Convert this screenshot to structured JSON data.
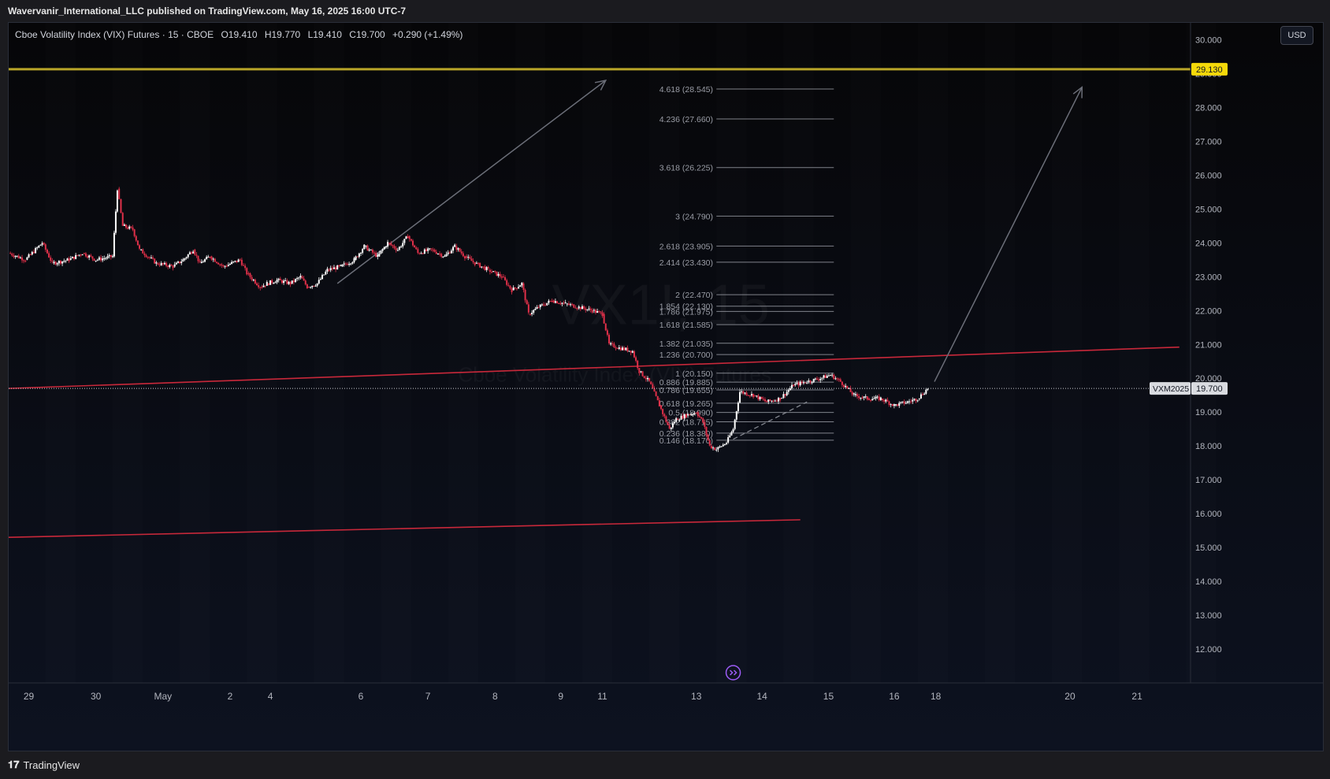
{
  "header": {
    "published": "Wavervanir_International_LLC published on TradingView.com, May 16, 2025 16:00 UTC-7"
  },
  "legend": {
    "symbol": "Cboe Volatility Index (VIX) Futures · 15 · CBOE",
    "open": "O19.410",
    "high": "H19.770",
    "low": "L19.410",
    "close": "C19.700",
    "change": "+0.290 (+1.49%)"
  },
  "currency_button": "USD",
  "footer": {
    "brand": "TradingView"
  },
  "colors": {
    "bull": "#ffffff",
    "bear": "#e03049",
    "trendline": "#c8283a",
    "fib": "#b2b5be",
    "arrow": "#6b6e78",
    "level": "#b8a528",
    "price_label_bg": "#f5d90a",
    "purple": "#9c5cf6"
  },
  "chart_data": {
    "type": "candlestick",
    "symbol": "VX1!",
    "interval": "15",
    "y_axis": {
      "range": [
        11.0,
        30.5
      ],
      "ticks": [
        "12.000",
        "13.000",
        "14.000",
        "15.000",
        "16.000",
        "17.000",
        "18.000",
        "19.000",
        "20.000",
        "21.000",
        "22.000",
        "23.000",
        "24.000",
        "25.000",
        "26.000",
        "27.000",
        "28.000",
        "29.000",
        "30.000"
      ]
    },
    "x_axis": {
      "ticks": [
        {
          "label": "29",
          "t": 0.3
        },
        {
          "label": "30",
          "t": 1.3
        },
        {
          "label": "May",
          "t": 2.3
        },
        {
          "label": "2",
          "t": 3.3
        },
        {
          "label": "4",
          "t": 3.9
        },
        {
          "label": "6",
          "t": 5.25
        },
        {
          "label": "7",
          "t": 6.25
        },
        {
          "label": "8",
          "t": 7.25
        },
        {
          "label": "9",
          "t": 8.23
        },
        {
          "label": "11",
          "t": 8.85
        },
        {
          "label": "13",
          "t": 10.25
        },
        {
          "label": "14",
          "t": 11.23
        },
        {
          "label": "15",
          "t": 12.22
        },
        {
          "label": "16",
          "t": 13.2
        },
        {
          "label": "18",
          "t": 13.82
        },
        {
          "label": "20",
          "t": 15.82
        },
        {
          "label": "21",
          "t": 16.82
        }
      ],
      "range": [
        0,
        17.5
      ]
    },
    "price_path": [
      [
        0.0,
        23.7
      ],
      [
        0.25,
        23.5
      ],
      [
        0.5,
        24.0
      ],
      [
        0.65,
        23.4
      ],
      [
        0.9,
        23.5
      ],
      [
        1.1,
        23.7
      ],
      [
        1.3,
        23.5
      ],
      [
        1.55,
        23.6
      ],
      [
        1.62,
        25.6
      ],
      [
        1.7,
        24.5
      ],
      [
        1.85,
        24.4
      ],
      [
        1.95,
        23.8
      ],
      [
        2.2,
        23.4
      ],
      [
        2.45,
        23.3
      ],
      [
        2.6,
        23.5
      ],
      [
        2.75,
        23.8
      ],
      [
        2.85,
        23.4
      ],
      [
        3.0,
        23.6
      ],
      [
        3.2,
        23.3
      ],
      [
        3.45,
        23.5
      ],
      [
        3.55,
        23.1
      ],
      [
        3.75,
        22.7
      ],
      [
        3.85,
        22.8
      ],
      [
        4.0,
        22.9
      ],
      [
        4.2,
        22.8
      ],
      [
        4.35,
        23.0
      ],
      [
        4.45,
        22.7
      ],
      [
        4.6,
        22.8
      ],
      [
        4.75,
        23.2
      ],
      [
        4.95,
        23.3
      ],
      [
        5.15,
        23.5
      ],
      [
        5.3,
        23.9
      ],
      [
        5.5,
        23.6
      ],
      [
        5.65,
        24.0
      ],
      [
        5.8,
        23.8
      ],
      [
        5.95,
        24.2
      ],
      [
        6.1,
        23.7
      ],
      [
        6.3,
        23.8
      ],
      [
        6.5,
        23.6
      ],
      [
        6.65,
        23.9
      ],
      [
        6.8,
        23.6
      ],
      [
        6.95,
        23.4
      ],
      [
        7.15,
        23.2
      ],
      [
        7.35,
        23.0
      ],
      [
        7.5,
        22.6
      ],
      [
        7.65,
        22.8
      ],
      [
        7.75,
        21.9
      ],
      [
        7.9,
        22.1
      ],
      [
        8.1,
        22.3
      ],
      [
        8.3,
        22.2
      ],
      [
        8.5,
        22.1
      ],
      [
        8.7,
        22.0
      ],
      [
        8.85,
        21.9
      ],
      [
        8.95,
        21.0
      ],
      [
        9.1,
        20.9
      ],
      [
        9.3,
        20.8
      ],
      [
        9.4,
        20.2
      ],
      [
        9.55,
        19.9
      ],
      [
        9.7,
        19.2
      ],
      [
        9.85,
        18.5
      ],
      [
        9.95,
        18.8
      ],
      [
        10.1,
        18.9
      ],
      [
        10.25,
        19.0
      ],
      [
        10.35,
        18.7
      ],
      [
        10.45,
        18.0
      ],
      [
        10.55,
        17.9
      ],
      [
        10.7,
        18.1
      ],
      [
        10.8,
        18.5
      ],
      [
        10.9,
        19.6
      ],
      [
        11.1,
        19.5
      ],
      [
        11.3,
        19.3
      ],
      [
        11.5,
        19.4
      ],
      [
        11.7,
        19.8
      ],
      [
        11.9,
        19.9
      ],
      [
        12.1,
        20.0
      ],
      [
        12.25,
        20.1
      ],
      [
        12.4,
        19.9
      ],
      [
        12.6,
        19.5
      ],
      [
        12.8,
        19.4
      ],
      [
        13.0,
        19.4
      ],
      [
        13.2,
        19.2
      ],
      [
        13.4,
        19.3
      ],
      [
        13.55,
        19.4
      ],
      [
        13.7,
        19.7
      ]
    ],
    "trendlines": [
      {
        "name": "upper-trendline",
        "from": [
          0.0,
          19.7
        ],
        "to": [
          17.45,
          20.92
        ]
      },
      {
        "name": "lower-trendline",
        "from": [
          0.0,
          15.3
        ],
        "to": [
          11.8,
          15.82
        ]
      }
    ],
    "horizontal_level": {
      "price": 29.13,
      "label": "29.130"
    },
    "arrows": [
      {
        "from": [
          4.9,
          22.8
        ],
        "to": [
          8.9,
          28.8
        ]
      },
      {
        "from": [
          13.8,
          19.9
        ],
        "to": [
          16.0,
          28.6
        ]
      }
    ],
    "dashed_line": {
      "from": [
        10.8,
        18.2
      ],
      "to": [
        11.9,
        19.3
      ]
    },
    "fib_extension": {
      "label_x": 10.5,
      "line_from": 10.55,
      "line_to": 12.3,
      "levels": [
        {
          "label": "4.618 (28.545)",
          "price": 28.545
        },
        {
          "label": "4.236 (27.660)",
          "price": 27.66
        },
        {
          "label": "3.618 (26.225)",
          "price": 26.225
        },
        {
          "label": "3 (24.790)",
          "price": 24.79
        },
        {
          "label": "2.618 (23.905)",
          "price": 23.905
        },
        {
          "label": "2.414 (23.430)",
          "price": 23.43
        },
        {
          "label": "2 (22.470)",
          "price": 22.47
        },
        {
          "label": "1.854 (22.130)",
          "price": 22.13
        },
        {
          "label": "1.786 (21.975)",
          "price": 21.975
        },
        {
          "label": "1.618 (21.585)",
          "price": 21.585
        },
        {
          "label": "1.382 (21.035)",
          "price": 21.035
        },
        {
          "label": "1.236 (20.700)",
          "price": 20.7
        },
        {
          "label": "1 (20.150)",
          "price": 20.15
        },
        {
          "label": "0.886 (19.885)",
          "price": 19.885
        },
        {
          "label": "0.786 (19.655)",
          "price": 19.655
        },
        {
          "label": "0.618 (19.265)",
          "price": 19.265
        },
        {
          "label": "0.5 (18.990)",
          "price": 18.99
        },
        {
          "label": "0.382 (18.715)",
          "price": 18.715
        },
        {
          "label": "0.236 (18.380)",
          "price": 18.38
        },
        {
          "label": "0.146 (18.170)",
          "price": 18.17
        }
      ]
    },
    "current_price": {
      "symbol_label": "VXM2025",
      "price": 19.7,
      "label": "19.700"
    },
    "watermark": {
      "symbol": "VX1!, 15",
      "name": "Cboe Volatility Index (VIX) Futures"
    }
  }
}
